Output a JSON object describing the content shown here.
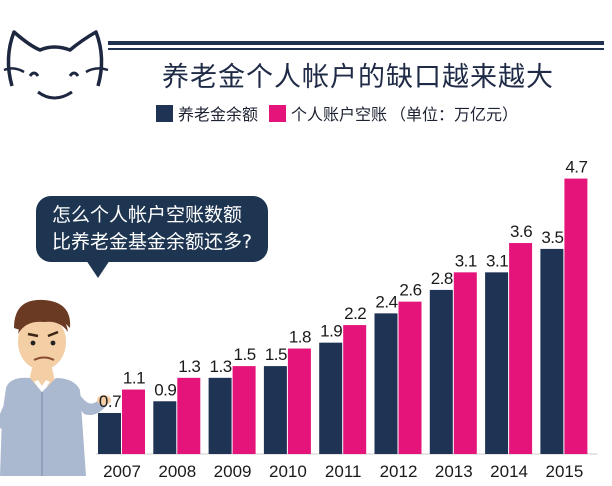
{
  "chart_data": {
    "type": "bar",
    "title": "养老金个人帐户的缺口越来越大",
    "categories": [
      "2007",
      "2008",
      "2009",
      "2010",
      "2011",
      "2012",
      "2013",
      "2014",
      "2015"
    ],
    "series": [
      {
        "name": "养老金余额",
        "values": [
          0.7,
          0.9,
          1.3,
          1.5,
          1.9,
          2.4,
          2.8,
          3.1,
          3.5
        ],
        "color": "#1f3354"
      },
      {
        "name": "个人账户空账",
        "values": [
          1.1,
          1.3,
          1.5,
          1.8,
          2.2,
          2.6,
          3.1,
          3.6,
          4.7
        ],
        "color": "#e5147b"
      }
    ],
    "unit_note": "（单位：万亿元）",
    "xlabel": "",
    "ylabel": "",
    "ylim": [
      0,
      4.9
    ],
    "grid": false,
    "legend_position": "top"
  },
  "annotation": {
    "line1": "怎么个人帐户空账数额",
    "line2": "比养老金基金余额还多?"
  },
  "icons": {
    "logo": "cat-face-logo",
    "character": "puzzled-man-illustration"
  }
}
